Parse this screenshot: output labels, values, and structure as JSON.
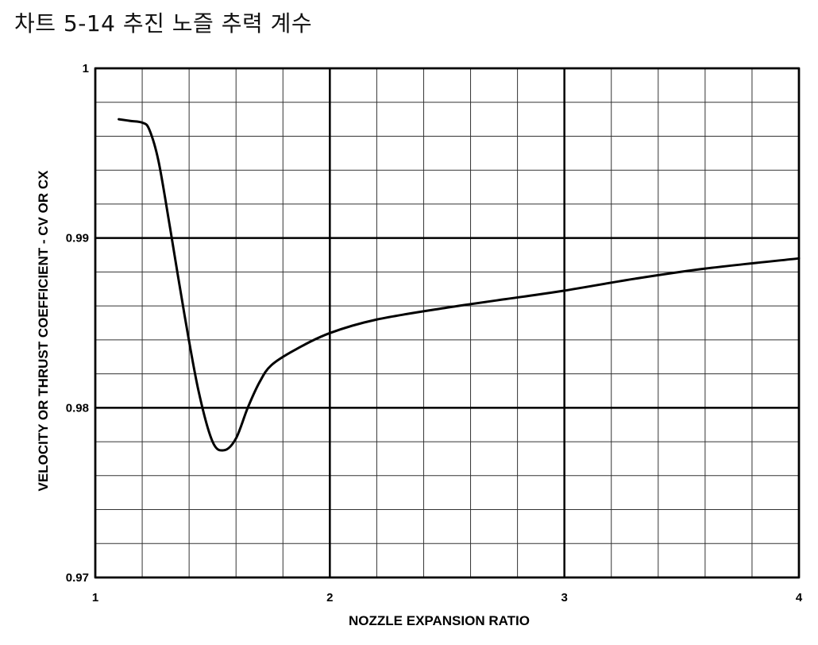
{
  "page": {
    "title": "차트 5-14 추진 노즐 추력 계수"
  },
  "chart_data": {
    "type": "line",
    "title": "",
    "xlabel": "NOZZLE EXPANSION RATIO",
    "ylabel": "VELOCITY OR THRUST COEFFICIENT - CV OR CX",
    "xlim": [
      1,
      4
    ],
    "ylim": [
      0.97,
      1.0
    ],
    "x_ticks": [
      1,
      2,
      3,
      4
    ],
    "x_tick_labels": [
      "1",
      "2",
      "3",
      "4"
    ],
    "y_ticks": [
      0.97,
      0.98,
      0.99,
      1.0
    ],
    "y_tick_labels": [
      "0.97",
      "0.98",
      "0.99",
      "1"
    ],
    "x_minor_step": 0.2,
    "y_minor_step": 0.002,
    "grid": true,
    "series": [
      {
        "name": "",
        "color": "#000000",
        "x": [
          1.1,
          1.15,
          1.2,
          1.23,
          1.27,
          1.32,
          1.38,
          1.44,
          1.5,
          1.55,
          1.6,
          1.65,
          1.7,
          1.75,
          1.85,
          2.0,
          2.2,
          2.5,
          2.8,
          3.0,
          3.3,
          3.6,
          4.0
        ],
        "y": [
          0.997,
          0.9969,
          0.9968,
          0.9964,
          0.9945,
          0.9905,
          0.9855,
          0.981,
          0.978,
          0.9775,
          0.9782,
          0.98,
          0.9815,
          0.9825,
          0.9834,
          0.9844,
          0.9852,
          0.9859,
          0.9865,
          0.9869,
          0.9876,
          0.9882,
          0.9888
        ]
      }
    ]
  }
}
